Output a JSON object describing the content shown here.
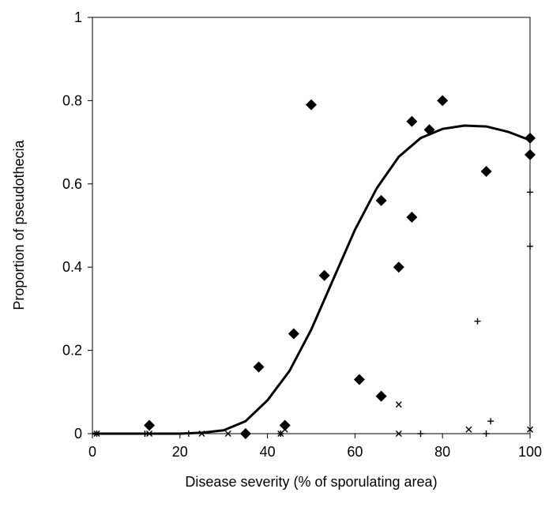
{
  "chart_data": {
    "type": "scatter",
    "title": "",
    "xlabel": "Disease severity (% of sporulating area)",
    "ylabel": "Proportion of pseudothecia",
    "xlim": [
      0,
      100
    ],
    "ylim": [
      0,
      1
    ],
    "x_ticks": [
      "0",
      "20",
      "40",
      "60",
      "80",
      "100"
    ],
    "y_ticks": [
      "0",
      "0.2",
      "0.4",
      "0.6",
      "0.8",
      "1"
    ],
    "grid": false,
    "legend": "none",
    "series": [
      {
        "marker": "diamond",
        "points": [
          {
            "x": 13,
            "y": 0.02
          },
          {
            "x": 35,
            "y": 0.0
          },
          {
            "x": 38,
            "y": 0.16
          },
          {
            "x": 44,
            "y": 0.02
          },
          {
            "x": 46,
            "y": 0.24
          },
          {
            "x": 50,
            "y": 0.79
          },
          {
            "x": 53,
            "y": 0.38
          },
          {
            "x": 61,
            "y": 0.13
          },
          {
            "x": 66,
            "y": 0.09
          },
          {
            "x": 66,
            "y": 0.56
          },
          {
            "x": 70,
            "y": 0.4
          },
          {
            "x": 73,
            "y": 0.75
          },
          {
            "x": 73,
            "y": 0.52
          },
          {
            "x": 77,
            "y": 0.73
          },
          {
            "x": 80,
            "y": 0.8
          },
          {
            "x": 90,
            "y": 0.63
          },
          {
            "x": 100,
            "y": 0.71
          },
          {
            "x": 100,
            "y": 0.67
          }
        ]
      },
      {
        "marker": "x",
        "points": [
          {
            "x": 1,
            "y": 0.0
          },
          {
            "x": 13,
            "y": 0.0
          },
          {
            "x": 25,
            "y": 0.0
          },
          {
            "x": 31,
            "y": 0.0
          },
          {
            "x": 43,
            "y": 0.0
          },
          {
            "x": 44,
            "y": 0.01
          },
          {
            "x": 70,
            "y": 0.0
          },
          {
            "x": 70,
            "y": 0.07
          },
          {
            "x": 86,
            "y": 0.01
          },
          {
            "x": 100,
            "y": 0.01
          }
        ]
      },
      {
        "marker": "plus",
        "points": [
          {
            "x": 1,
            "y": 0.0
          },
          {
            "x": 12,
            "y": 0.0
          },
          {
            "x": 22,
            "y": 0.0
          },
          {
            "x": 35,
            "y": 0.0
          },
          {
            "x": 43,
            "y": 0.0
          },
          {
            "x": 75,
            "y": 0.0
          },
          {
            "x": 88,
            "y": 0.27
          },
          {
            "x": 90,
            "y": 0.0
          },
          {
            "x": 91,
            "y": 0.03
          },
          {
            "x": 100,
            "y": 0.45
          },
          {
            "x": 100,
            "y": 0.58
          }
        ]
      },
      {
        "marker": "line",
        "style": "fitted curve",
        "points": [
          {
            "x": 0,
            "y": 0.0
          },
          {
            "x": 10,
            "y": 0.0
          },
          {
            "x": 20,
            "y": 0.0
          },
          {
            "x": 25,
            "y": 0.002
          },
          {
            "x": 30,
            "y": 0.008
          },
          {
            "x": 35,
            "y": 0.03
          },
          {
            "x": 40,
            "y": 0.08
          },
          {
            "x": 45,
            "y": 0.15
          },
          {
            "x": 50,
            "y": 0.25
          },
          {
            "x": 55,
            "y": 0.37
          },
          {
            "x": 60,
            "y": 0.49
          },
          {
            "x": 65,
            "y": 0.59
          },
          {
            "x": 70,
            "y": 0.665
          },
          {
            "x": 75,
            "y": 0.71
          },
          {
            "x": 80,
            "y": 0.732
          },
          {
            "x": 85,
            "y": 0.74
          },
          {
            "x": 90,
            "y": 0.738
          },
          {
            "x": 95,
            "y": 0.725
          },
          {
            "x": 100,
            "y": 0.705
          }
        ]
      }
    ]
  }
}
